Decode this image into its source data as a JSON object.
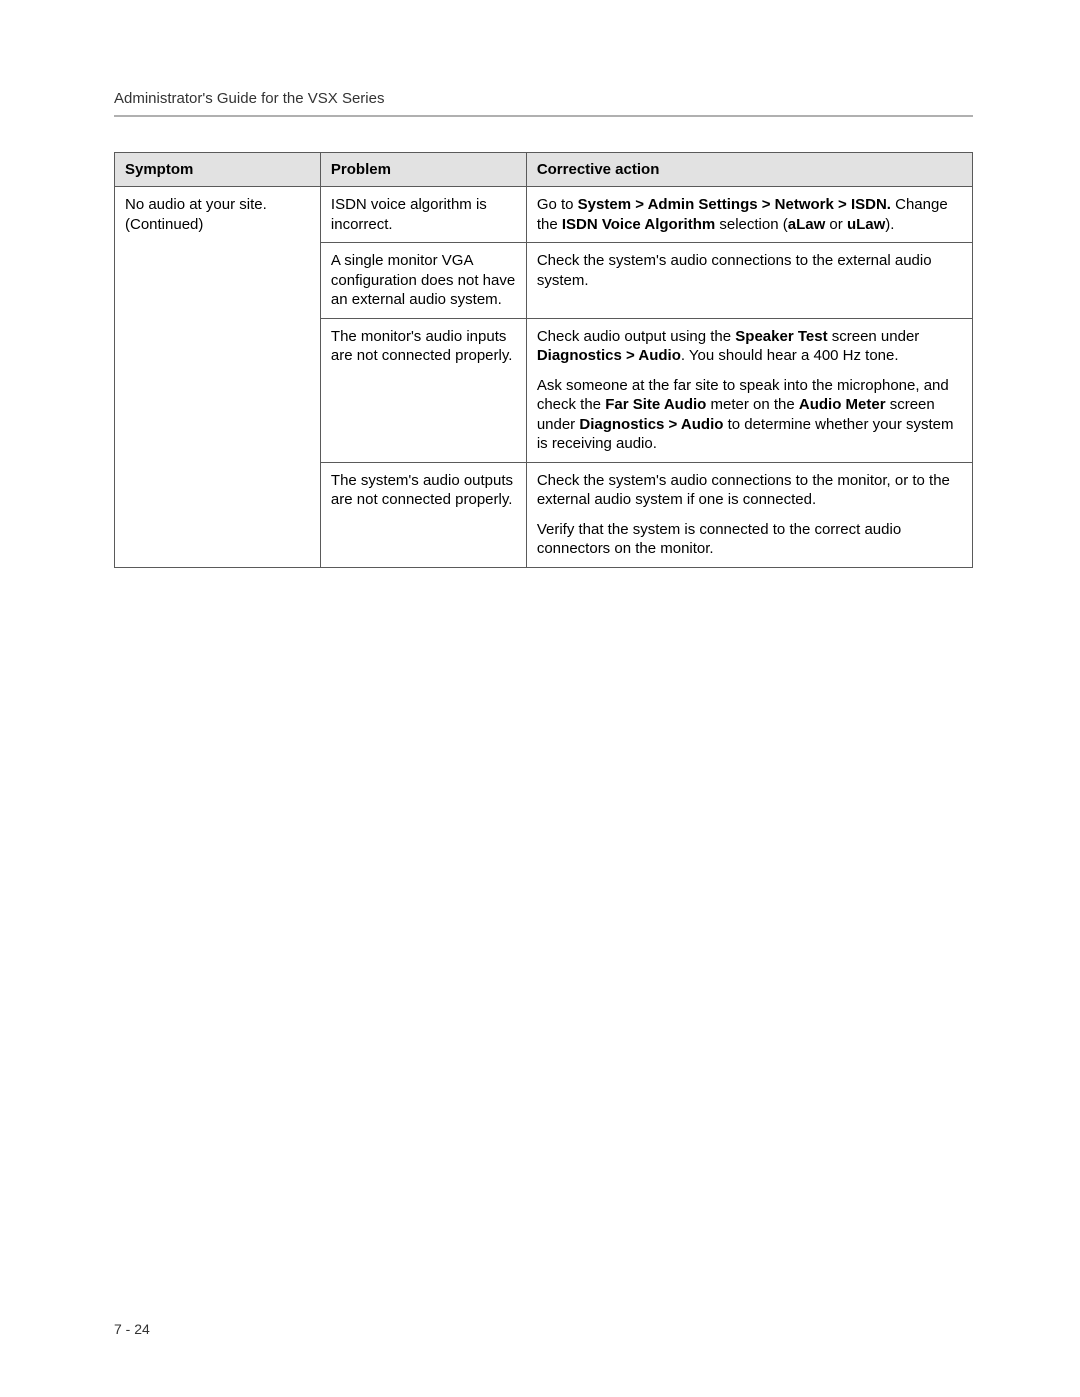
{
  "header": {
    "running_title": "Administrator's Guide for the VSX Series"
  },
  "footer": {
    "page_number": "7 - 24"
  },
  "table": {
    "columns": {
      "symptom": "Symptom",
      "problem": "Problem",
      "corrective": "Corrective action"
    },
    "header_bg": "#e2e2e2",
    "border_color": "#5a5a5a",
    "symptom_cell": {
      "line1": "No audio at your site.",
      "line2": "(Continued)"
    },
    "rows": [
      {
        "problem": "ISDN voice algorithm is incorrect.",
        "corrective_segments": [
          [
            {
              "t": "Go to ",
              "b": false
            },
            {
              "t": "System > Admin Settings > Network > ISDN.",
              "b": true
            },
            {
              "t": " Change the ",
              "b": false
            },
            {
              "t": "ISDN Voice Algorithm",
              "b": true
            },
            {
              "t": " selection (",
              "b": false
            },
            {
              "t": "aLaw",
              "b": true
            },
            {
              "t": " or ",
              "b": false
            },
            {
              "t": "uLaw",
              "b": true
            },
            {
              "t": ").",
              "b": false
            }
          ]
        ]
      },
      {
        "problem": "A single monitor VGA configuration does not have an external audio system.",
        "corrective_segments": [
          [
            {
              "t": "Check the system's audio connections to the external audio system.",
              "b": false
            }
          ]
        ]
      },
      {
        "problem": "The monitor's audio inputs are not connected properly.",
        "corrective_segments": [
          [
            {
              "t": "Check audio output using the ",
              "b": false
            },
            {
              "t": "Speaker Test",
              "b": true
            },
            {
              "t": " screen under ",
              "b": false
            },
            {
              "t": "Diagnostics > Audio",
              "b": true
            },
            {
              "t": ". You should hear a 400 Hz tone.",
              "b": false
            }
          ],
          [
            {
              "t": "Ask someone at the far site to speak into the microphone, and check the ",
              "b": false
            },
            {
              "t": "Far Site Audio",
              "b": true
            },
            {
              "t": " meter on the ",
              "b": false
            },
            {
              "t": "Audio Meter",
              "b": true
            },
            {
              "t": " screen under ",
              "b": false
            },
            {
              "t": "Diagnostics > Audio",
              "b": true
            },
            {
              "t": " to determine whether your system is receiving audio.",
              "b": false
            }
          ]
        ]
      },
      {
        "problem": "The system's audio outputs are not connected properly.",
        "corrective_segments": [
          [
            {
              "t": "Check the system's audio connections to the monitor, or to the external audio system if one is connected.",
              "b": false
            }
          ],
          [
            {
              "t": "Verify that the system is connected to the correct audio connectors on the monitor.",
              "b": false
            }
          ]
        ]
      }
    ]
  }
}
